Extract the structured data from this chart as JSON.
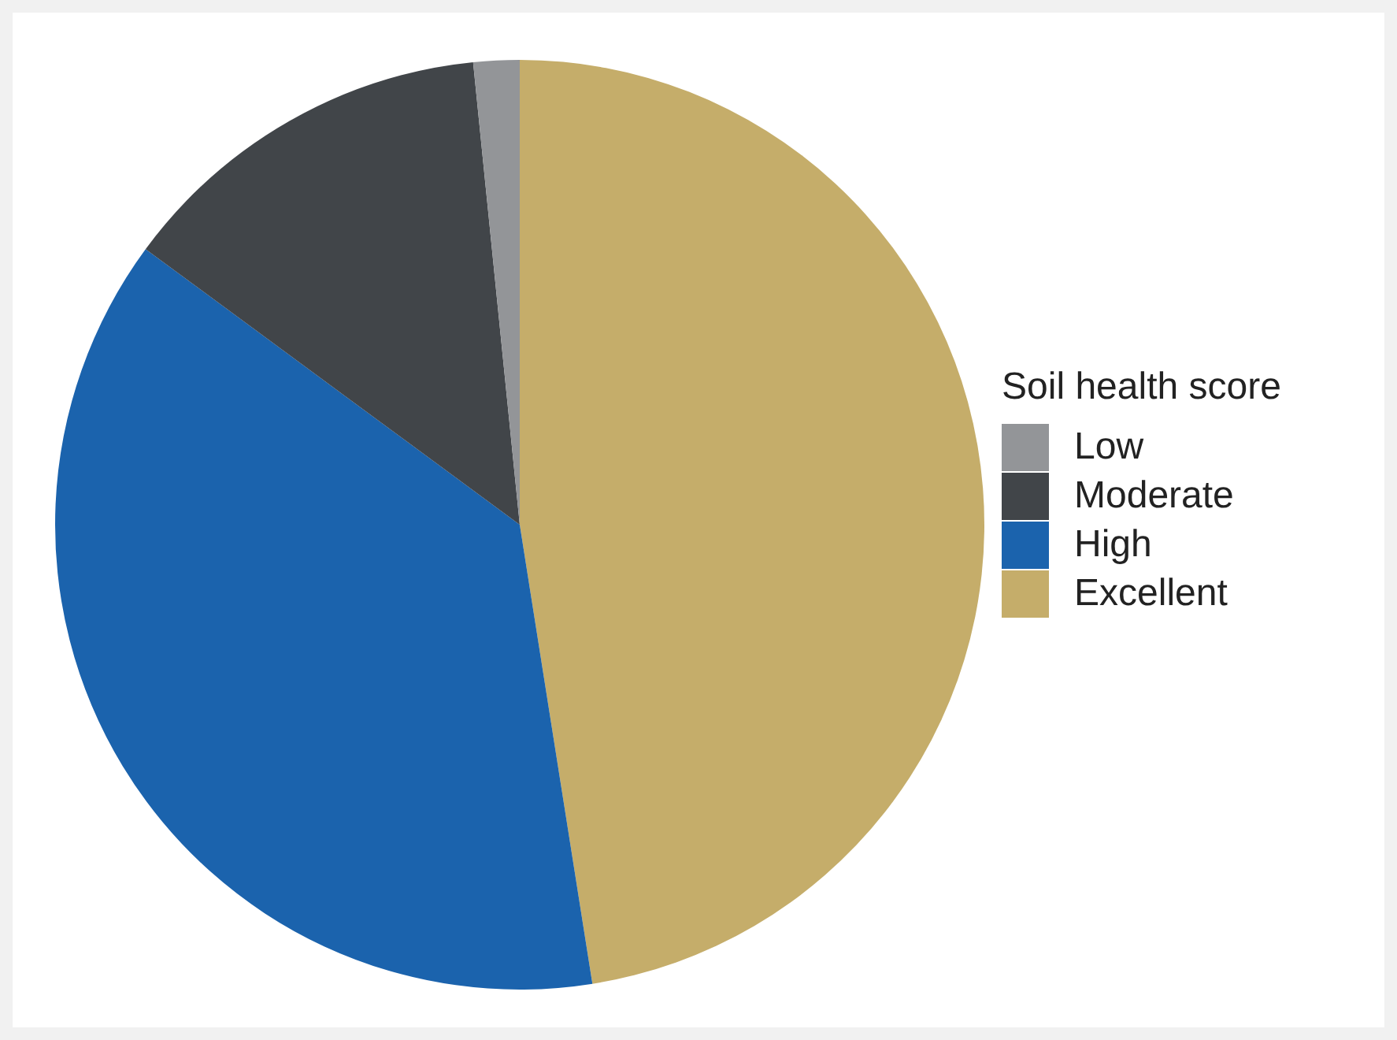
{
  "chart_data": {
    "type": "pie",
    "legend_title": "Soil health score",
    "legend": "right",
    "categories": [
      "Low",
      "Moderate",
      "High",
      "Excellent"
    ],
    "values": [
      1.6,
      13.3,
      37.6,
      47.5
    ],
    "colors": [
      "#939598",
      "#414549",
      "#1b63ad",
      "#c5ad6a"
    ]
  }
}
